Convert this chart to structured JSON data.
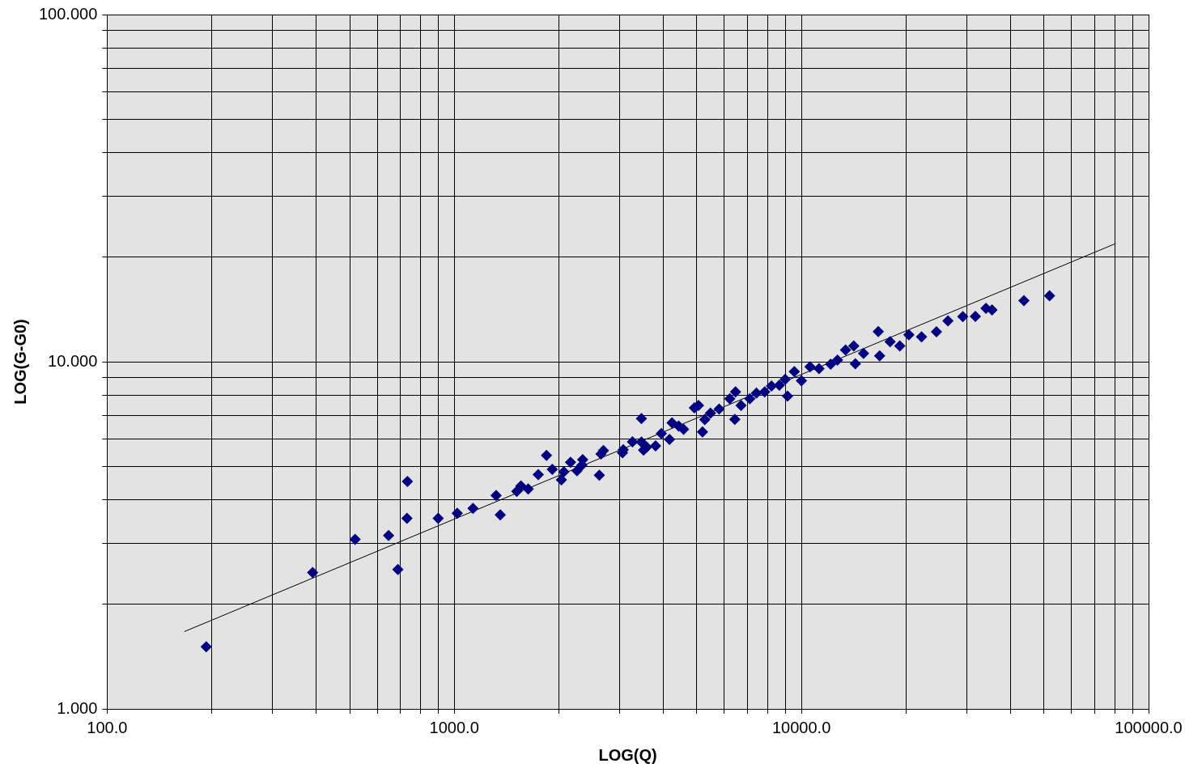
{
  "chart_data": {
    "type": "scatter",
    "xlabel": "LOG(Q)",
    "ylabel": "LOG(G-G0)",
    "log": "xy",
    "grid": true,
    "legend": false,
    "marker": "diamond",
    "xlim": [
      100,
      100000
    ],
    "ylim": [
      1,
      100
    ],
    "xticks": [
      {
        "value": 100,
        "label": "100.0"
      },
      {
        "value": 200,
        "label": null
      },
      {
        "value": 300,
        "label": null
      },
      {
        "value": 400,
        "label": null
      },
      {
        "value": 500,
        "label": null
      },
      {
        "value": 600,
        "label": null
      },
      {
        "value": 700,
        "label": null
      },
      {
        "value": 800,
        "label": null
      },
      {
        "value": 900,
        "label": null
      },
      {
        "value": 1000,
        "label": "1000.0"
      },
      {
        "value": 2000,
        "label": null
      },
      {
        "value": 3000,
        "label": null
      },
      {
        "value": 4000,
        "label": null
      },
      {
        "value": 5000,
        "label": null
      },
      {
        "value": 6000,
        "label": null
      },
      {
        "value": 7000,
        "label": null
      },
      {
        "value": 8000,
        "label": null
      },
      {
        "value": 9000,
        "label": null
      },
      {
        "value": 10000,
        "label": "10000.0"
      },
      {
        "value": 20000,
        "label": null
      },
      {
        "value": 30000,
        "label": null
      },
      {
        "value": 40000,
        "label": null
      },
      {
        "value": 50000,
        "label": null
      },
      {
        "value": 60000,
        "label": null
      },
      {
        "value": 70000,
        "label": null
      },
      {
        "value": 80000,
        "label": null
      },
      {
        "value": 90000,
        "label": null
      },
      {
        "value": 100000,
        "label": "100000.0"
      }
    ],
    "yticks": [
      {
        "value": 1,
        "label": "1.000"
      },
      {
        "value": 2,
        "label": null
      },
      {
        "value": 3,
        "label": null
      },
      {
        "value": 4,
        "label": null
      },
      {
        "value": 5,
        "label": null
      },
      {
        "value": 6,
        "label": null
      },
      {
        "value": 7,
        "label": null
      },
      {
        "value": 8,
        "label": null
      },
      {
        "value": 9,
        "label": null
      },
      {
        "value": 10,
        "label": "10.000"
      },
      {
        "value": 20,
        "label": null
      },
      {
        "value": 30,
        "label": null
      },
      {
        "value": 40,
        "label": null
      },
      {
        "value": 50,
        "label": null
      },
      {
        "value": 60,
        "label": null
      },
      {
        "value": 70,
        "label": null
      },
      {
        "value": 80,
        "label": null
      },
      {
        "value": 90,
        "label": null
      },
      {
        "value": 100,
        "label": "100.000"
      }
    ],
    "series": [
      {
        "color": "#000080",
        "x": [
          193,
          391,
          518,
          647,
          688,
          731,
          733,
          899,
          1020,
          1132,
          1320,
          1357,
          1514,
          1556,
          1633,
          1746,
          1844,
          1916,
          2035,
          2068,
          2163,
          2257,
          2344,
          2333,
          2618,
          2647,
          2690,
          3052,
          3068,
          3261,
          3460,
          3460,
          3510,
          3584,
          3802,
          3950,
          4169,
          4240,
          4431,
          4576,
          4918,
          5052,
          5188,
          5270,
          5470,
          5794,
          6220,
          6460,
          6430,
          6700,
          7100,
          7420,
          7840,
          8200,
          8640,
          8980,
          9120,
          9540,
          10000,
          10590,
          11240,
          12140,
          12700,
          13400,
          14150,
          14300,
          15100,
          16650,
          16800,
          18010,
          19200,
          20400,
          22180,
          24490,
          26430,
          29170,
          31700,
          34010,
          35400,
          43750,
          51850
        ],
        "values": [
          1.51,
          2.47,
          3.08,
          3.16,
          2.52,
          3.54,
          4.52,
          3.54,
          3.66,
          3.78,
          4.12,
          3.62,
          4.23,
          4.39,
          4.3,
          4.73,
          5.37,
          4.9,
          4.57,
          4.82,
          5.13,
          4.85,
          5.22,
          5.04,
          4.71,
          5.42,
          5.55,
          5.47,
          5.58,
          5.88,
          6.86,
          5.87,
          5.56,
          5.68,
          5.72,
          6.21,
          5.97,
          6.67,
          6.53,
          6.39,
          7.36,
          7.48,
          6.28,
          6.81,
          7.11,
          7.31,
          7.82,
          8.19,
          6.82,
          7.48,
          7.82,
          8.12,
          8.19,
          8.51,
          8.56,
          8.9,
          7.96,
          9.36,
          8.82,
          9.67,
          9.55,
          9.84,
          10.11,
          10.81,
          11.1,
          9.87,
          10.57,
          12.21,
          10.4,
          11.42,
          11.1,
          11.95,
          11.8,
          12.2,
          13.12,
          13.48,
          13.5,
          14.26,
          14.1,
          14.99,
          15.49
        ]
      },
      {
        "type": "line",
        "color": "#000000",
        "marker": "none",
        "x": [
          167,
          80400
        ],
        "values": [
          1.67,
          21.9
        ]
      }
    ]
  }
}
